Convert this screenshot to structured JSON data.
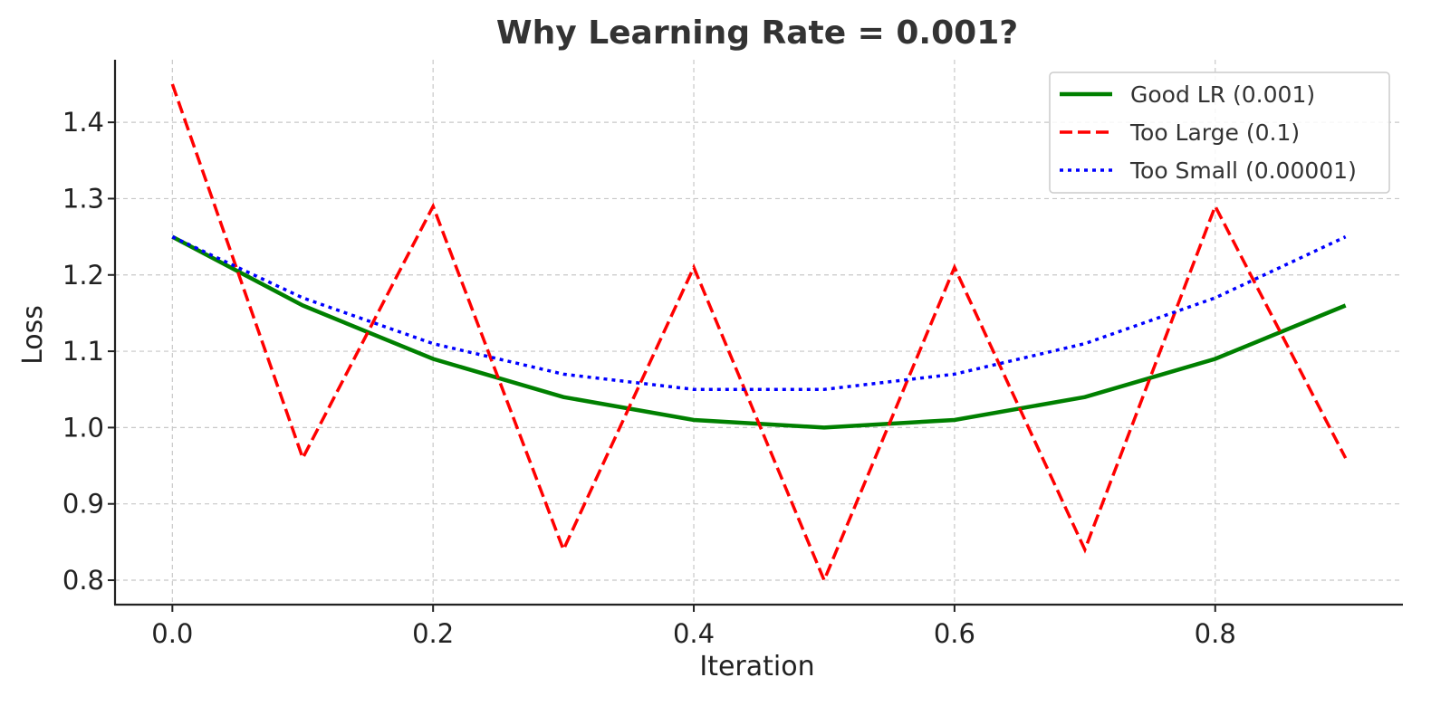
{
  "chart_data": {
    "type": "line",
    "title": "Why Learning Rate = 0.001?",
    "xlabel": "Iteration",
    "ylabel": "Loss",
    "x": [
      0.0,
      0.1,
      0.2,
      0.3,
      0.4,
      0.5,
      0.6,
      0.7,
      0.8,
      0.9
    ],
    "xlim": [
      -0.044,
      0.944
    ],
    "ylim": [
      0.768,
      1.482
    ],
    "xticks": [
      "0.0",
      "0.2",
      "0.4",
      "0.6",
      "0.8"
    ],
    "yticks": [
      "0.8",
      "0.9",
      "1.0",
      "1.1",
      "1.2",
      "1.3",
      "1.4"
    ],
    "grid": true,
    "legend_position": "top-right",
    "series": [
      {
        "name": "Good LR (0.001)",
        "color": "#008000",
        "style": "solid",
        "values": [
          1.25,
          1.16,
          1.09,
          1.04,
          1.01,
          1.0,
          1.01,
          1.04,
          1.09,
          1.16
        ]
      },
      {
        "name": "Too Large (0.1)",
        "color": "#ff0000",
        "style": "dashed",
        "values": [
          1.45,
          0.96,
          1.29,
          0.84,
          1.21,
          0.8,
          1.21,
          0.84,
          1.29,
          0.96
        ]
      },
      {
        "name": "Too Small (0.00001)",
        "color": "#0000ff",
        "style": "dotted",
        "values": [
          1.25,
          1.17,
          1.11,
          1.07,
          1.05,
          1.05,
          1.07,
          1.11,
          1.17,
          1.25
        ]
      }
    ]
  }
}
